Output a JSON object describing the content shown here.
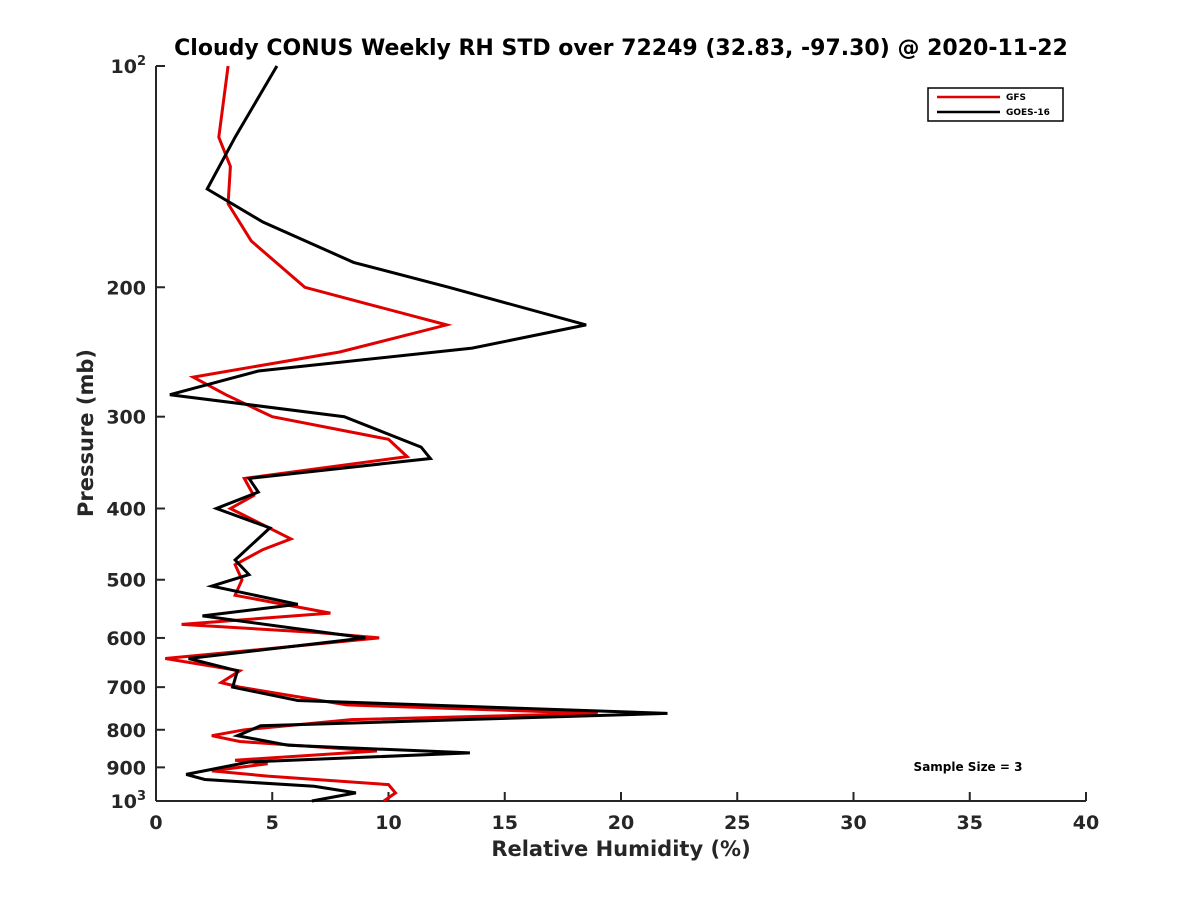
{
  "chart_data": {
    "type": "line",
    "title": "Cloudy CONUS Weekly RH STD over 72249 (32.83, -97.30) @ 2020-11-22",
    "xlabel": "Relative Humidity (%)",
    "ylabel": "Pressure (mb)",
    "xlim": [
      0,
      40
    ],
    "ylim": [
      100,
      1000
    ],
    "y_scale": "log",
    "y_reversed": true,
    "x_ticks": [
      "0",
      "5",
      "10",
      "15",
      "20",
      "25",
      "30",
      "35",
      "40"
    ],
    "y_ticks": [
      {
        "value": 100,
        "base": "10",
        "exp": "2"
      },
      {
        "value": 200,
        "label": "200"
      },
      {
        "value": 300,
        "label": "300"
      },
      {
        "value": 400,
        "label": "400"
      },
      {
        "value": 500,
        "label": "500"
      },
      {
        "value": 600,
        "label": "600"
      },
      {
        "value": 700,
        "label": "700"
      },
      {
        "value": 800,
        "label": "800"
      },
      {
        "value": 900,
        "label": "900"
      },
      {
        "value": 1000,
        "base": "10",
        "exp": "3"
      }
    ],
    "grid": false,
    "legend_position": "top-right",
    "series": [
      {
        "name": "GFS",
        "color": "#e00000",
        "points": [
          [
            3.1,
            100
          ],
          [
            2.7,
            125
          ],
          [
            3.2,
            137
          ],
          [
            3.1,
            154
          ],
          [
            4.1,
            173
          ],
          [
            6.4,
            200
          ],
          [
            12.5,
            225
          ],
          [
            7.9,
            245
          ],
          [
            1.6,
            265
          ],
          [
            3.0,
            280
          ],
          [
            5.0,
            300
          ],
          [
            10.0,
            322
          ],
          [
            10.8,
            340
          ],
          [
            3.8,
            364
          ],
          [
            4.2,
            384
          ],
          [
            3.2,
            400
          ],
          [
            5.8,
            440
          ],
          [
            4.6,
            455
          ],
          [
            3.4,
            477
          ],
          [
            3.7,
            500
          ],
          [
            3.4,
            525
          ],
          [
            7.5,
            555
          ],
          [
            1.1,
            575
          ],
          [
            7.0,
            590
          ],
          [
            9.6,
            600
          ],
          [
            5.0,
            620
          ],
          [
            0.4,
            640
          ],
          [
            3.6,
            665
          ],
          [
            2.8,
            690
          ],
          [
            3.6,
            700
          ],
          [
            8.2,
            740
          ],
          [
            19.0,
            760
          ],
          [
            8.4,
            775
          ],
          [
            3.8,
            800
          ],
          [
            2.4,
            815
          ],
          [
            3.6,
            830
          ],
          [
            9.5,
            855
          ],
          [
            3.4,
            880
          ],
          [
            4.8,
            890
          ],
          [
            2.4,
            910
          ],
          [
            4.8,
            925
          ],
          [
            10.0,
            950
          ],
          [
            10.3,
            975
          ],
          [
            9.8,
            1000
          ]
        ]
      },
      {
        "name": "GOES-16",
        "color": "#000000",
        "points": [
          [
            5.2,
            100
          ],
          [
            3.4,
            125
          ],
          [
            2.2,
            147
          ],
          [
            4.6,
            163
          ],
          [
            8.5,
            185
          ],
          [
            12.6,
            200
          ],
          [
            18.5,
            225
          ],
          [
            13.6,
            242
          ],
          [
            4.4,
            260
          ],
          [
            0.6,
            280
          ],
          [
            8.1,
            300
          ],
          [
            11.4,
            330
          ],
          [
            11.8,
            342
          ],
          [
            4.0,
            364
          ],
          [
            4.4,
            380
          ],
          [
            2.6,
            400
          ],
          [
            4.9,
            425
          ],
          [
            3.4,
            470
          ],
          [
            4.0,
            492
          ],
          [
            2.4,
            510
          ],
          [
            6.1,
            540
          ],
          [
            2.0,
            560
          ],
          [
            9.0,
            600
          ],
          [
            1.4,
            640
          ],
          [
            3.5,
            665
          ],
          [
            3.3,
            700
          ],
          [
            6.1,
            730
          ],
          [
            22.0,
            760
          ],
          [
            4.5,
            790
          ],
          [
            3.5,
            815
          ],
          [
            5.7,
            840
          ],
          [
            13.5,
            860
          ],
          [
            4.0,
            885
          ],
          [
            1.3,
            920
          ],
          [
            2.1,
            935
          ],
          [
            6.8,
            955
          ],
          [
            8.6,
            975
          ],
          [
            6.7,
            1000
          ]
        ]
      }
    ],
    "annotations": [
      "Sample Size = 3"
    ]
  }
}
